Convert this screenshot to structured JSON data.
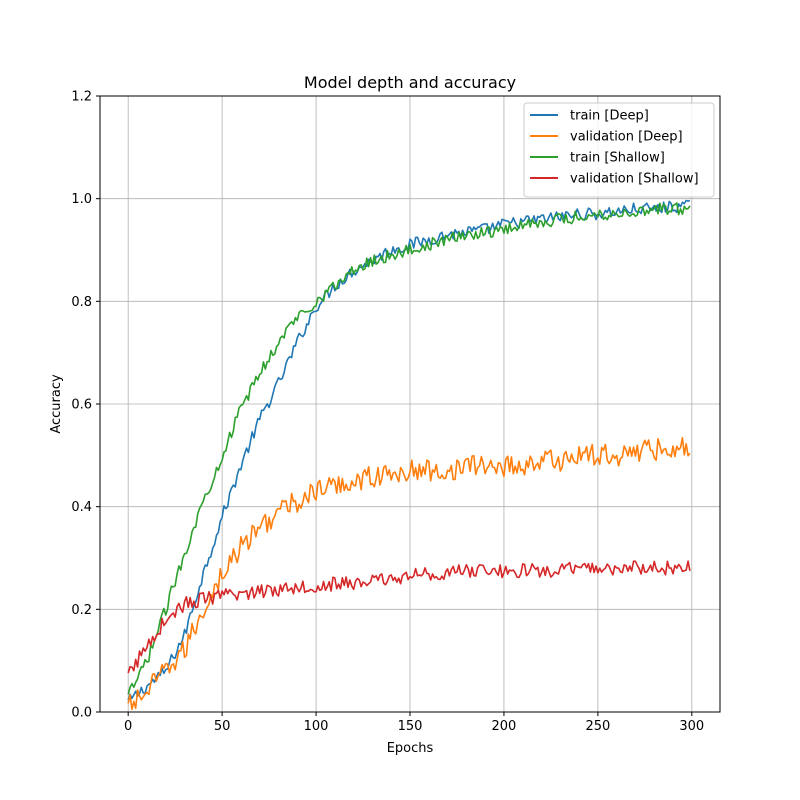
{
  "chart_data": {
    "type": "line",
    "title": "Model depth and accuracy",
    "xlabel": "Epochs",
    "ylabel": "Accuracy",
    "xlim": [
      -15,
      315
    ],
    "ylim": [
      0.0,
      1.2
    ],
    "xticks": [
      0,
      50,
      100,
      150,
      200,
      250,
      300
    ],
    "yticks": [
      0.0,
      0.2,
      0.4,
      0.6,
      0.8,
      1.0,
      1.2
    ],
    "ytick_labels": [
      "0.0",
      "0.2",
      "0.4",
      "0.6",
      "0.8",
      "1.0",
      "1.2"
    ],
    "grid": true,
    "legend_position": "top-right",
    "series": [
      {
        "name": "train [Deep]",
        "color": "#1f77b4",
        "x": [
          0,
          10,
          20,
          30,
          40,
          50,
          60,
          70,
          80,
          90,
          100,
          110,
          120,
          130,
          140,
          150,
          160,
          170,
          180,
          190,
          200,
          210,
          220,
          230,
          240,
          250,
          260,
          270,
          280,
          290,
          299
        ],
        "y": [
          0.02,
          0.05,
          0.08,
          0.15,
          0.27,
          0.38,
          0.48,
          0.57,
          0.64,
          0.72,
          0.79,
          0.83,
          0.86,
          0.88,
          0.9,
          0.91,
          0.92,
          0.93,
          0.935,
          0.94,
          0.95,
          0.955,
          0.96,
          0.965,
          0.97,
          0.97,
          0.975,
          0.98,
          0.98,
          0.985,
          0.985
        ]
      },
      {
        "name": "validation [Deep]",
        "color": "#ff7f0e",
        "x": [
          0,
          10,
          20,
          30,
          40,
          50,
          60,
          70,
          80,
          90,
          100,
          110,
          120,
          130,
          140,
          150,
          160,
          170,
          180,
          190,
          200,
          210,
          220,
          230,
          240,
          250,
          260,
          270,
          280,
          290,
          299
        ],
        "y": [
          0.01,
          0.04,
          0.08,
          0.12,
          0.2,
          0.27,
          0.32,
          0.36,
          0.39,
          0.41,
          0.43,
          0.44,
          0.45,
          0.46,
          0.46,
          0.47,
          0.47,
          0.47,
          0.48,
          0.48,
          0.48,
          0.48,
          0.49,
          0.49,
          0.5,
          0.5,
          0.5,
          0.51,
          0.51,
          0.52,
          0.51
        ]
      },
      {
        "name": "train [Shallow]",
        "color": "#2ca02c",
        "x": [
          0,
          10,
          20,
          30,
          40,
          50,
          60,
          70,
          80,
          90,
          100,
          110,
          120,
          130,
          140,
          150,
          160,
          170,
          180,
          190,
          200,
          210,
          220,
          230,
          240,
          250,
          260,
          270,
          280,
          290,
          299
        ],
        "y": [
          0.03,
          0.1,
          0.2,
          0.31,
          0.41,
          0.5,
          0.59,
          0.66,
          0.72,
          0.77,
          0.8,
          0.83,
          0.86,
          0.88,
          0.89,
          0.9,
          0.91,
          0.92,
          0.93,
          0.935,
          0.94,
          0.95,
          0.955,
          0.96,
          0.965,
          0.97,
          0.97,
          0.975,
          0.98,
          0.98,
          0.98
        ]
      },
      {
        "name": "validation [Shallow]",
        "color": "#d62728",
        "x": [
          0,
          10,
          20,
          30,
          40,
          50,
          60,
          70,
          80,
          90,
          100,
          110,
          120,
          130,
          140,
          150,
          160,
          170,
          180,
          190,
          200,
          210,
          220,
          230,
          240,
          250,
          260,
          270,
          280,
          290,
          299
        ],
        "y": [
          0.07,
          0.13,
          0.18,
          0.21,
          0.22,
          0.225,
          0.23,
          0.235,
          0.24,
          0.245,
          0.245,
          0.25,
          0.25,
          0.255,
          0.26,
          0.265,
          0.27,
          0.27,
          0.275,
          0.275,
          0.275,
          0.275,
          0.275,
          0.275,
          0.28,
          0.28,
          0.28,
          0.28,
          0.28,
          0.28,
          0.285
        ]
      }
    ]
  }
}
